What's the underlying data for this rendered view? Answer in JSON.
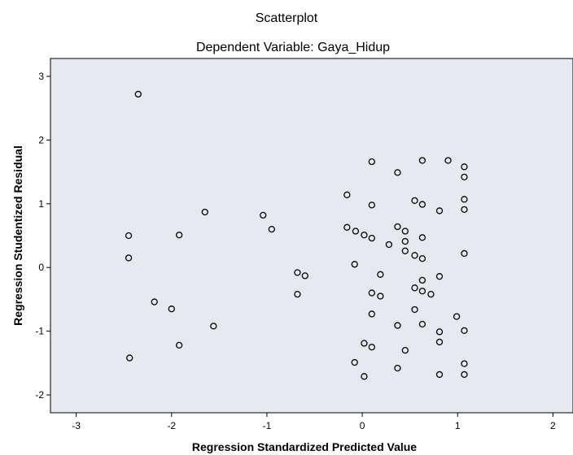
{
  "chart_data": {
    "type": "scatter",
    "title": "Scatterplot",
    "subtitle": "Dependent Variable: Gaya_Hidup",
    "x_label": "Regression Standardized Predicted Value",
    "y_label": "Regression Studentized Residual",
    "xlim": [
      -3.27,
      2.21
    ],
    "ylim": [
      -2.28,
      3.28
    ],
    "xticks": [
      -3,
      -2,
      -1,
      0,
      1,
      2
    ],
    "yticks": [
      -2,
      -1,
      0,
      1,
      2,
      3
    ],
    "marker_color": "#000000",
    "x": [
      -2.35,
      -2.45,
      -2.45,
      -2.44,
      -2.18,
      -2.0,
      -1.92,
      -1.92,
      -1.65,
      -1.56,
      -1.04,
      -0.95,
      -0.68,
      -0.6,
      -0.68,
      -0.16,
      -0.16,
      -0.07,
      0.02,
      0.1,
      0.1,
      0.1,
      -0.08,
      -0.08,
      0.02,
      0.02,
      0.1,
      0.1,
      0.1,
      0.19,
      0.19,
      0.28,
      0.37,
      0.37,
      0.37,
      0.37,
      0.45,
      0.45,
      0.45,
      0.45,
      0.55,
      0.55,
      0.55,
      0.55,
      0.63,
      0.63,
      0.63,
      0.63,
      0.63,
      0.63,
      0.63,
      0.72,
      0.81,
      0.81,
      0.81,
      0.81,
      0.81,
      0.9,
      0.99,
      1.07,
      1.07,
      1.07,
      1.07,
      1.07,
      1.07,
      1.07,
      1.07
    ],
    "y": [
      2.72,
      0.5,
      0.15,
      -1.42,
      -0.54,
      -0.65,
      0.51,
      -1.22,
      0.87,
      -0.92,
      0.82,
      0.6,
      -0.08,
      -0.13,
      -0.42,
      1.14,
      0.63,
      0.57,
      0.51,
      0.46,
      1.66,
      0.98,
      0.05,
      -1.49,
      -1.19,
      -1.71,
      -1.25,
      -0.4,
      -0.73,
      -0.11,
      -0.45,
      0.36,
      1.49,
      0.64,
      -0.91,
      -1.58,
      0.57,
      0.41,
      0.26,
      -1.3,
      1.05,
      0.19,
      -0.32,
      -0.66,
      1.68,
      0.99,
      0.47,
      0.14,
      -0.2,
      -0.37,
      -0.89,
      -0.42,
      0.89,
      -0.14,
      -1.01,
      -1.17,
      -1.68,
      1.68,
      -0.77,
      1.58,
      1.42,
      1.07,
      0.91,
      0.22,
      -0.99,
      -1.51,
      -1.68
    ]
  }
}
